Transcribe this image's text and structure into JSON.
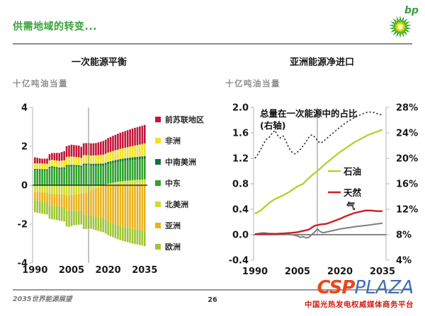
{
  "slide": {
    "title": "供需地域的转变...",
    "title_color": "#3ba23b",
    "logo": {
      "text": "bp",
      "icon": "bp-helios-sunburst"
    },
    "footer_left": "2035世界能源展望",
    "page_number": "26",
    "watermark": {
      "csp": "CSP",
      "plaza": "PLAZA",
      "tagline": "中国光热发电权威媒体商务平台"
    }
  },
  "charts": {
    "left": {
      "title": "一次能源平衡",
      "unit": "十亿吨油当量"
    },
    "right": {
      "title": "亚洲能源净进口",
      "unit": "十亿吨油当量"
    }
  },
  "chart_data": [
    {
      "type": "bar",
      "title": "一次能源平衡",
      "ylabel": "十亿吨油当量",
      "ylim": [
        -4,
        4
      ],
      "ytick_labels": [
        "4",
        "2",
        "0",
        "-2",
        "-4"
      ],
      "ytick_values": [
        4,
        2,
        0,
        -2,
        -4
      ],
      "xticks": [
        1990,
        2005,
        2020,
        2035
      ],
      "x_range": [
        1990,
        2035
      ],
      "marker_year": 2012,
      "jitter": 0.05,
      "legend_position": "right",
      "stack_order": [
        "北美洲",
        "中东",
        "中南美洲",
        "非洲",
        "前苏联地区",
        "亚洲",
        "欧洲"
      ],
      "series": [
        {
          "name": "前苏联地区",
          "color": "#c31638",
          "years": [
            1990,
            1993,
            1995,
            2000,
            2005,
            2008,
            2010,
            2012,
            2015,
            2020,
            2025,
            2030,
            2035
          ],
          "values": [
            0.3,
            0.25,
            0.28,
            0.42,
            0.6,
            0.62,
            0.58,
            0.62,
            0.63,
            0.75,
            0.83,
            0.9,
            0.95
          ]
        },
        {
          "name": "非洲",
          "color": "#efe32b",
          "years": [
            1990,
            1995,
            2000,
            2005,
            2012,
            2015,
            2020,
            2025,
            2030,
            2035
          ],
          "values": [
            0.28,
            0.3,
            0.35,
            0.42,
            0.42,
            0.43,
            0.48,
            0.52,
            0.58,
            0.65
          ]
        },
        {
          "name": "中南美洲",
          "color": "#10713a",
          "years": [
            1990,
            2000,
            2005,
            2012,
            2020,
            2035
          ],
          "values": [
            0.06,
            0.07,
            0.08,
            0.1,
            0.12,
            0.15
          ]
        },
        {
          "name": "中东",
          "color": "#2fa12e",
          "years": [
            1990,
            1995,
            1997,
            2000,
            2003,
            2005,
            2008,
            2010,
            2012,
            2020,
            2025,
            2035
          ],
          "values": [
            0.75,
            0.8,
            0.88,
            0.85,
            0.92,
            0.95,
            0.98,
            0.96,
            1.0,
            1.0,
            1.02,
            1.05
          ]
        },
        {
          "name": "北美洲",
          "color": "#cedc33",
          "years": [
            1990,
            1993,
            1995,
            1998,
            2000,
            2003,
            2005,
            2008,
            2010,
            2012,
            2014,
            2016,
            2018,
            2020,
            2022,
            2025,
            2030,
            2035
          ],
          "values": [
            -0.33,
            -0.38,
            -0.42,
            -0.45,
            -0.48,
            -0.5,
            -0.5,
            -0.46,
            -0.4,
            -0.32,
            -0.22,
            -0.12,
            -0.02,
            0.08,
            0.13,
            0.2,
            0.26,
            0.3
          ]
        },
        {
          "name": "亚洲",
          "color": "#eab31f",
          "years": [
            1990,
            1995,
            2000,
            2005,
            2008,
            2010,
            2012,
            2015,
            2020,
            2025,
            2030,
            2035
          ],
          "values": [
            -0.42,
            -0.52,
            -0.65,
            -0.8,
            -0.92,
            -1.05,
            -1.2,
            -1.45,
            -1.85,
            -2.1,
            -2.25,
            -2.35
          ]
        },
        {
          "name": "欧洲",
          "color": "#9fc637",
          "years": [
            1990,
            1995,
            2000,
            2002,
            2004,
            2006,
            2008,
            2010,
            2012,
            2015,
            2020,
            2025,
            2030,
            2035
          ],
          "values": [
            -0.6,
            -0.65,
            -0.72,
            -0.76,
            -0.8,
            -0.74,
            -0.72,
            -0.7,
            -0.68,
            -0.7,
            -0.72,
            -0.73,
            -0.75,
            -0.78
          ]
        }
      ]
    },
    {
      "type": "line",
      "title": "亚洲能源净进口",
      "ylabel_left": "十亿吨油当量",
      "ylim_left": [
        -0.4,
        2.0
      ],
      "left_tick_labels": [
        "2.0",
        "1.6",
        "1.2",
        "0.8",
        "0.4",
        "0.0",
        "-0.4"
      ],
      "left_tick_values": [
        2.0,
        1.6,
        1.2,
        0.8,
        0.4,
        0.0,
        -0.4
      ],
      "ylim_right_pct": [
        4,
        28
      ],
      "right_tick_labels": [
        "28%",
        "24%",
        "20%",
        "16%",
        "12%",
        "8%",
        "4%"
      ],
      "right_tick_values_pct": [
        28,
        24,
        20,
        16,
        12,
        8,
        4
      ],
      "xticks": [
        1990,
        2005,
        2020,
        2035
      ],
      "x_range": [
        1990,
        2035
      ],
      "marker_year": 2012,
      "annotation_line1": "总量在一次能源中的占比",
      "annotation_line2": "(右轴)",
      "series": [
        {
          "name": "share-of-primary-energy",
          "label": "",
          "axis": "right",
          "style": "dotted",
          "color": "#3a3a3a",
          "years": [
            1990,
            1991,
            1992,
            1993,
            1994,
            1995,
            1996,
            1997,
            1998,
            1999,
            2000,
            2001,
            2002,
            2003,
            2004,
            2005,
            2006,
            2007,
            2008,
            2009,
            2010,
            2011,
            2012,
            2013,
            2014,
            2015,
            2017,
            2020,
            2022,
            2025,
            2028,
            2030,
            2032,
            2034,
            2035
          ],
          "values": [
            20.0,
            20.6,
            21.4,
            22.3,
            23.0,
            23.3,
            23.9,
            24.4,
            23.6,
            23.2,
            23.5,
            22.6,
            21.6,
            21.0,
            20.7,
            21.0,
            21.4,
            22.0,
            22.6,
            23.3,
            23.7,
            23.4,
            22.8,
            22.4,
            22.6,
            23.0,
            23.8,
            24.9,
            25.6,
            26.4,
            27.0,
            27.3,
            27.2,
            26.9,
            26.8
          ]
        },
        {
          "name": "oil",
          "label": "石油",
          "axis": "left",
          "style": "solid",
          "color": "#b5d234",
          "years": [
            1990,
            1992,
            1995,
            1997,
            1999,
            2000,
            2002,
            2005,
            2007,
            2008,
            2010,
            2012,
            2015,
            2020,
            2025,
            2030,
            2035
          ],
          "values": [
            0.33,
            0.38,
            0.5,
            0.56,
            0.6,
            0.62,
            0.67,
            0.76,
            0.8,
            0.85,
            0.93,
            1.0,
            1.12,
            1.3,
            1.45,
            1.57,
            1.65
          ]
        },
        {
          "name": "unlabeled-gray",
          "label": "",
          "axis": "left",
          "style": "solid",
          "color": "#7f7f7f",
          "years": [
            1990,
            1993,
            1995,
            2000,
            2003,
            2005,
            2006,
            2007,
            2008,
            2009,
            2010,
            2011,
            2012,
            2013,
            2014,
            2015,
            2017,
            2020,
            2023,
            2026,
            2030,
            2033,
            2035
          ],
          "values": [
            0.01,
            0.03,
            0.02,
            0.01,
            0.0,
            -0.02,
            -0.04,
            -0.03,
            -0.05,
            -0.04,
            0.0,
            0.04,
            0.09,
            0.05,
            0.03,
            0.04,
            0.06,
            0.09,
            0.11,
            0.13,
            0.15,
            0.17,
            0.18
          ]
        },
        {
          "name": "natural-gas",
          "label": "天然气",
          "axis": "left",
          "style": "solid",
          "color": "#cb2027",
          "years": [
            1990,
            1995,
            2000,
            2003,
            2005,
            2007,
            2009,
            2010,
            2011,
            2012,
            2013,
            2015,
            2017,
            2020,
            2022,
            2025,
            2027,
            2029,
            2031,
            2033,
            2035
          ],
          "values": [
            0.01,
            0.01,
            0.02,
            0.03,
            0.04,
            0.06,
            0.08,
            0.11,
            0.14,
            0.15,
            0.16,
            0.17,
            0.2,
            0.25,
            0.29,
            0.34,
            0.36,
            0.38,
            0.38,
            0.37,
            0.37
          ]
        }
      ]
    }
  ]
}
